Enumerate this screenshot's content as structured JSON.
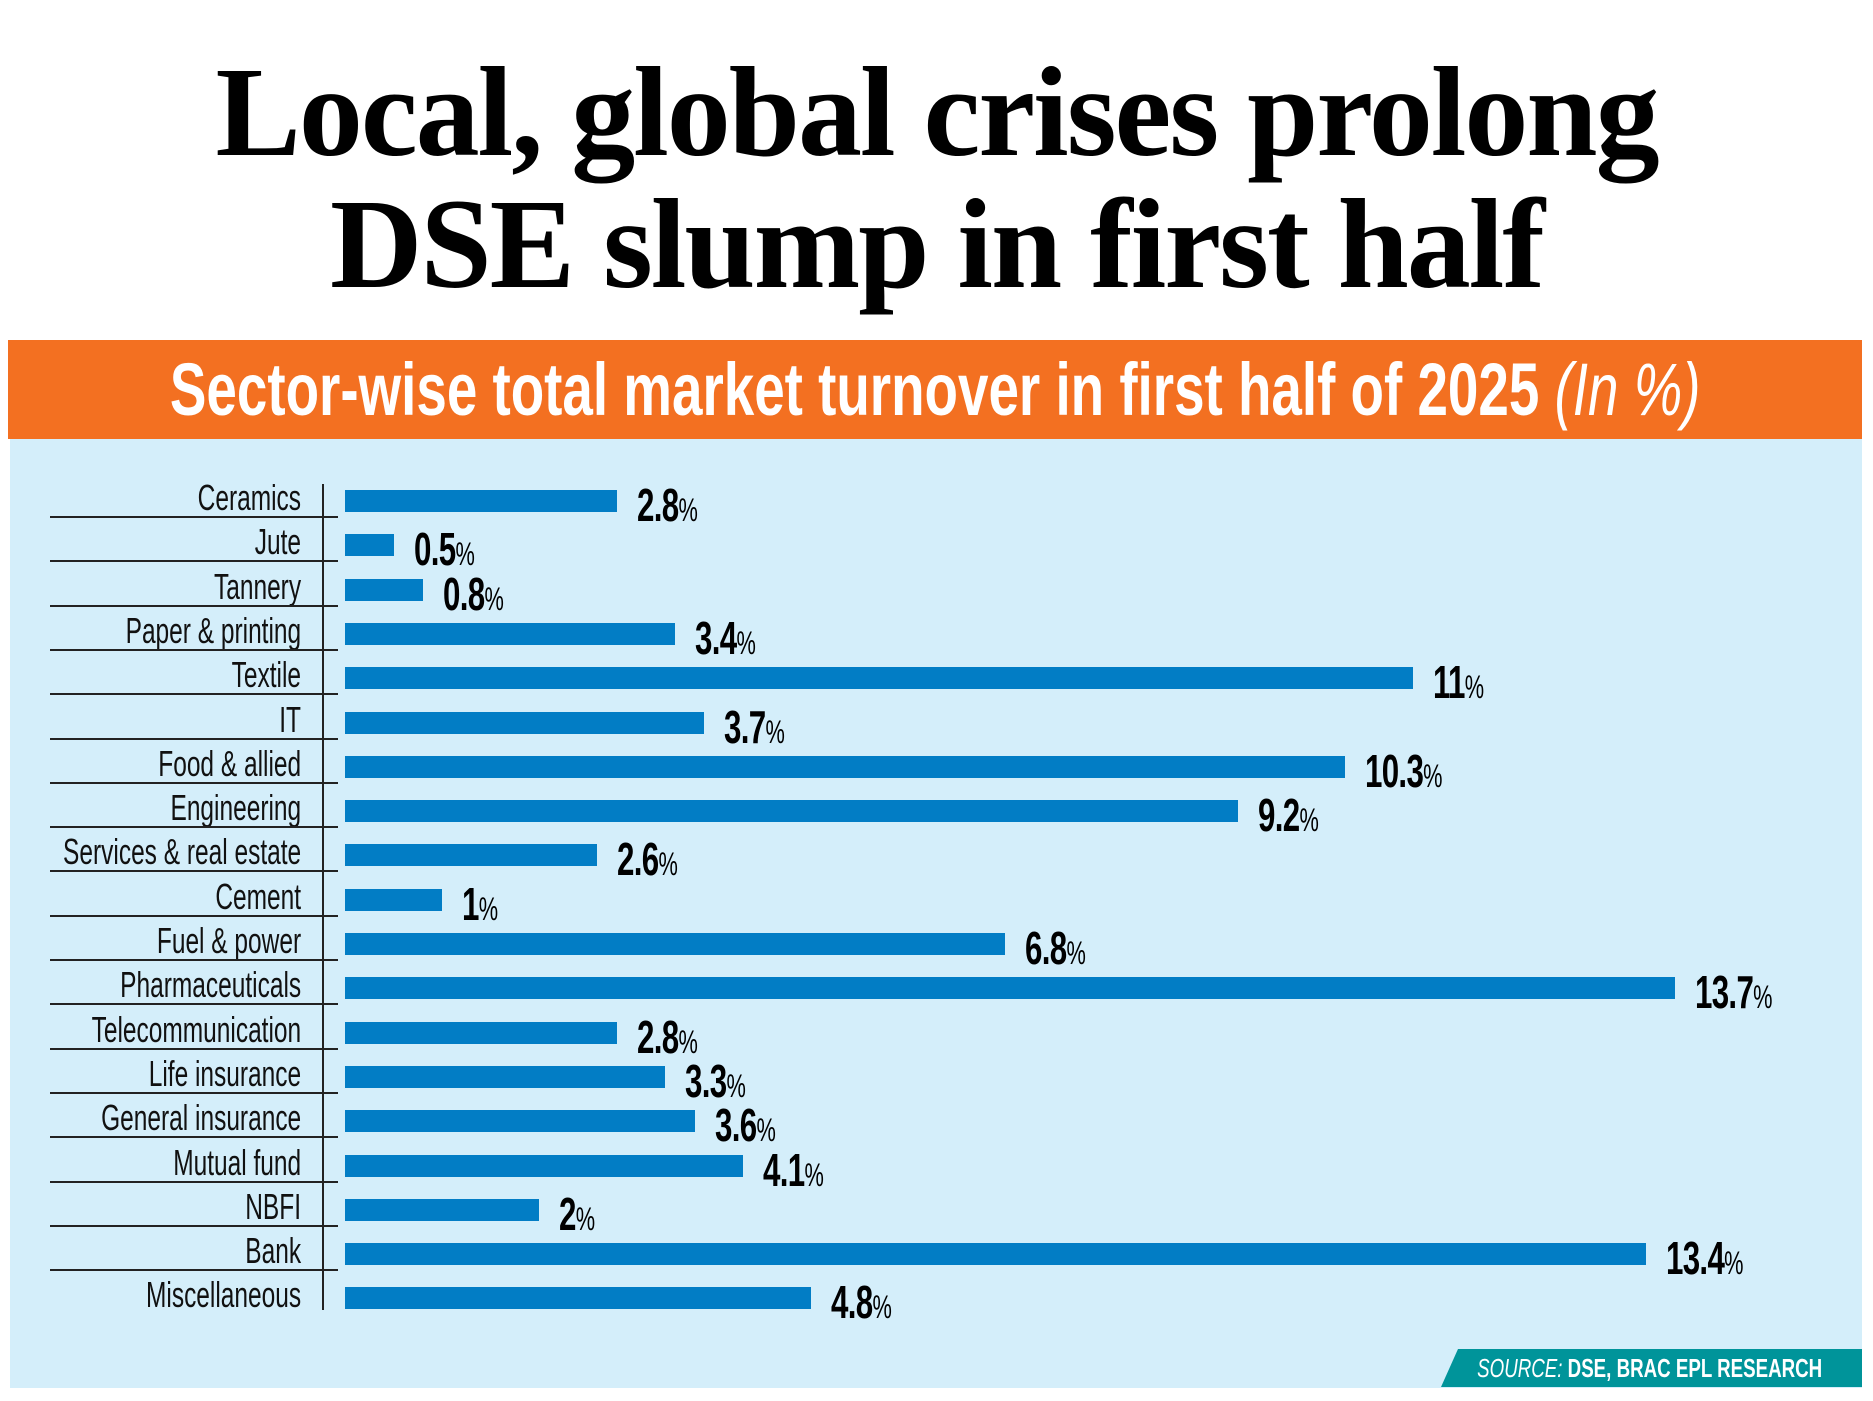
{
  "chart_data": {
    "type": "bar",
    "orientation": "horizontal",
    "title": "Local, global crises prolong DSE slump in first half",
    "title_lines": [
      "Local, global crises prolong",
      "DSE slump in first half"
    ],
    "subtitle": "Sector-wise total market turnover in first half of 2025",
    "subtitle_unit": "(In %)",
    "categories": [
      "Ceramics",
      "Jute",
      "Tannery",
      "Paper & printing",
      "Textile",
      "IT",
      "Food & allied",
      "Engineering",
      "Services & real estate",
      "Cement",
      "Fuel & power",
      "Pharmaceuticals",
      "Telecommunication",
      "Life insurance",
      "General insurance",
      "Mutual fund",
      "NBFI",
      "Bank",
      "Miscellaneous"
    ],
    "values": [
      2.8,
      0.5,
      0.8,
      3.4,
      11,
      3.7,
      10.3,
      9.2,
      2.6,
      1,
      6.8,
      13.7,
      2.8,
      3.3,
      3.6,
      4.1,
      2,
      13.4,
      4.8
    ],
    "value_labels": [
      "2.8",
      "0.5",
      "0.8",
      "3.4",
      "11",
      "3.7",
      "10.3",
      "9.2",
      "2.6",
      "1",
      "6.8",
      "13.7",
      "2.8",
      "3.3",
      "3.6",
      "4.1",
      "2",
      "13.4",
      "4.8"
    ],
    "value_suffix": "%",
    "xlim": [
      0,
      14
    ],
    "grid": false,
    "colors": {
      "bar": "#027DC5",
      "band": "#F37021",
      "panel": "#D4EEFA",
      "source_tab": "#00949A"
    }
  },
  "source": {
    "label": "SOURCE:",
    "text": "DSE, BRAC EPL RESEARCH"
  }
}
